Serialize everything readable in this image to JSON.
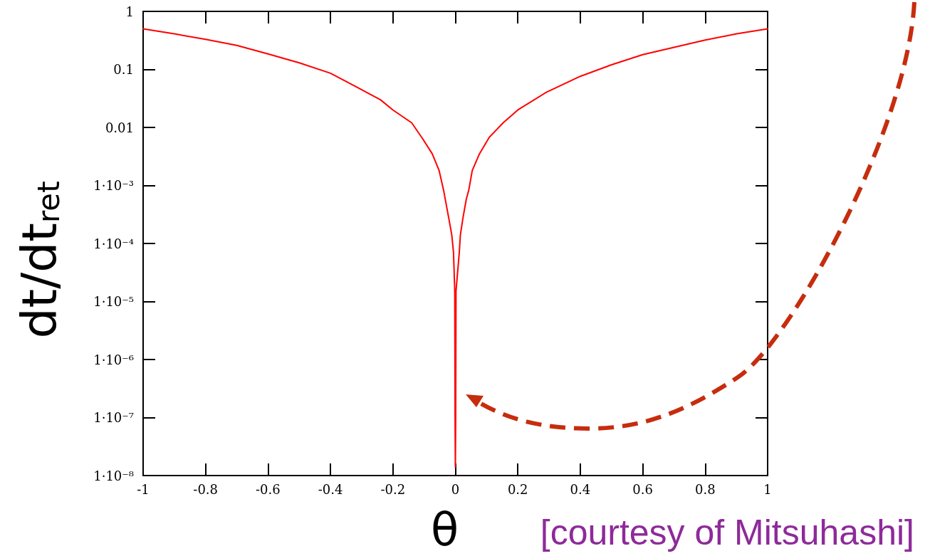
{
  "chart_data": {
    "type": "line",
    "xlabel": "θ",
    "ylabel": "dt/dt$_{ret}$",
    "annotations": [
      "[courtesy of Mitsuhashi]"
    ],
    "x": [
      -1,
      -0.9,
      -0.8,
      -0.7,
      -0.6,
      -0.5,
      -0.4,
      -0.32,
      -0.24,
      -0.2,
      -0.14,
      -0.105,
      -0.074,
      -0.052,
      -0.038,
      -0.021,
      -0.0115,
      -0.006,
      -0.002,
      -0.001,
      0,
      0.001,
      0.002,
      0.0125,
      0.016,
      0.024,
      0.035,
      0.043,
      0.054,
      0.077,
      0.108,
      0.153,
      0.2,
      0.29,
      0.4,
      0.5,
      0.6,
      0.7,
      0.8,
      0.9,
      1
    ],
    "series": [
      {
        "color": "#ff0000",
        "values": [
          0.5,
          0.41,
          0.33,
          0.26,
          0.185,
          0.13,
          0.086,
          0.051,
          0.03,
          0.02,
          0.012,
          0.0064,
          0.0035,
          0.0018,
          0.00084,
          0.00027,
          0.00014,
          7e-05,
          1.5e-05,
          1e-07,
          1.4e-08,
          1e-07,
          1.5e-05,
          7e-05,
          0.00014,
          0.00027,
          0.00058,
          0.00084,
          0.0018,
          0.0035,
          0.0067,
          0.012,
          0.02,
          0.04,
          0.076,
          0.12,
          0.18,
          0.24,
          0.32,
          0.41,
          0.5
        ]
      }
    ],
    "xlim": [
      -1,
      1
    ],
    "xticks": [
      -1,
      -0.8,
      -0.6,
      -0.4,
      -0.2,
      0,
      0.2,
      0.4,
      0.6,
      0.8,
      1
    ],
    "ylim": [
      1e-08,
      1
    ],
    "yticks": [
      1,
      0.1,
      0.01,
      {
        "value": 0.001,
        "label": "1·10⁻³"
      },
      {
        "value": 0.0001,
        "label": "1·10⁻⁴"
      },
      {
        "value": 1e-05,
        "label": "1·10⁻⁵"
      },
      {
        "value": 1e-06,
        "label": "1·10⁻⁶"
      },
      {
        "value": 1e-07,
        "label": "1·10⁻⁷"
      },
      {
        "value": 1e-08,
        "label": "1·10⁻⁸"
      }
    ],
    "log": "y",
    "marker": "none",
    "line_style": "solid"
  }
}
